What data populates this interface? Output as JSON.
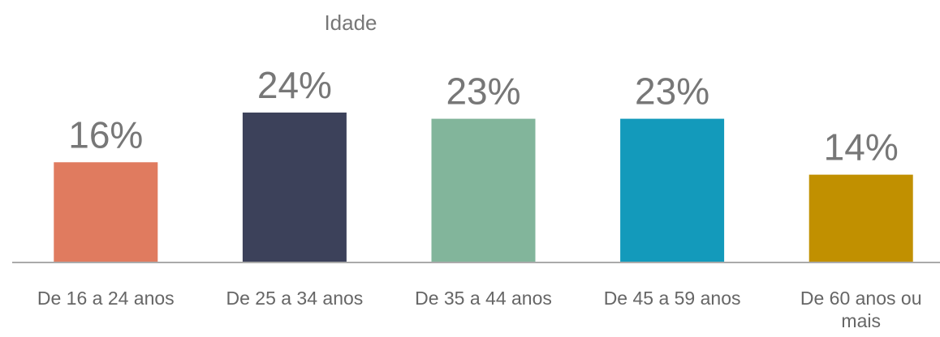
{
  "chart_data": {
    "type": "bar",
    "title": "Idade",
    "categories": [
      "De 16 a 24 anos",
      "De 25 a 34 anos",
      "De 35 a 44 anos",
      "De 45 a 59 anos",
      "De 60 anos ou mais"
    ],
    "values": [
      16,
      24,
      23,
      23,
      14
    ],
    "value_labels": [
      "16%",
      "24%",
      "23%",
      "23%",
      "14%"
    ],
    "colors": [
      "#e07b5f",
      "#3c415a",
      "#82b59b",
      "#139abb",
      "#c19000"
    ]
  }
}
